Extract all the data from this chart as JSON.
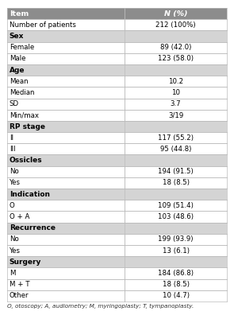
{
  "header": [
    "Item",
    "N (%)"
  ],
  "rows": [
    {
      "label": "Number of patients",
      "value": "212 (100%)",
      "type": "data"
    },
    {
      "label": "Sex",
      "value": "",
      "type": "section"
    },
    {
      "label": "Female",
      "value": "89 (42.0)",
      "type": "data"
    },
    {
      "label": "Male",
      "value": "123 (58.0)",
      "type": "data"
    },
    {
      "label": "Age",
      "value": "",
      "type": "section"
    },
    {
      "label": "Mean",
      "value": "10.2",
      "type": "data"
    },
    {
      "label": "Median",
      "value": "10",
      "type": "data"
    },
    {
      "label": "SD",
      "value": "3.7",
      "type": "data"
    },
    {
      "label": "Min/max",
      "value": "3/19",
      "type": "data"
    },
    {
      "label": "RP stage",
      "value": "",
      "type": "section"
    },
    {
      "label": "II",
      "value": "117 (55.2)",
      "type": "data"
    },
    {
      "label": "III",
      "value": "95 (44.8)",
      "type": "data"
    },
    {
      "label": "Ossicles",
      "value": "",
      "type": "section"
    },
    {
      "label": "No",
      "value": "194 (91.5)",
      "type": "data"
    },
    {
      "label": "Yes",
      "value": "18 (8.5)",
      "type": "data"
    },
    {
      "label": "Indication",
      "value": "",
      "type": "section"
    },
    {
      "label": "O",
      "value": "109 (51.4)",
      "type": "data"
    },
    {
      "label": "O + A",
      "value": "103 (48.6)",
      "type": "data"
    },
    {
      "label": "Recurrence",
      "value": "",
      "type": "section"
    },
    {
      "label": "No",
      "value": "199 (93.9)",
      "type": "data"
    },
    {
      "label": "Yes",
      "value": "13 (6.1)",
      "type": "data"
    },
    {
      "label": "Surgery",
      "value": "",
      "type": "section"
    },
    {
      "label": "M",
      "value": "184 (86.8)",
      "type": "data"
    },
    {
      "label": "M + T",
      "value": "18 (8.5)",
      "type": "data"
    },
    {
      "label": "Other",
      "value": "10 (4.7)",
      "type": "data"
    }
  ],
  "footnote": "O, otoscopy; A, audiometry; M, myringoplasty; T, tympanoplasty.",
  "header_bg": "#8c8c8c",
  "section_bg": "#d4d4d4",
  "data_bg": "#ffffff",
  "border_color": "#bbbbbb",
  "header_text_color": "#ffffff",
  "data_text_color": "#000000",
  "header_font_size": 6.8,
  "data_font_size": 6.2,
  "section_font_size": 6.5,
  "footnote_font_size": 5.2,
  "col_split": 0.535,
  "fig_width": 2.95,
  "fig_height": 4.01,
  "dpi": 100
}
